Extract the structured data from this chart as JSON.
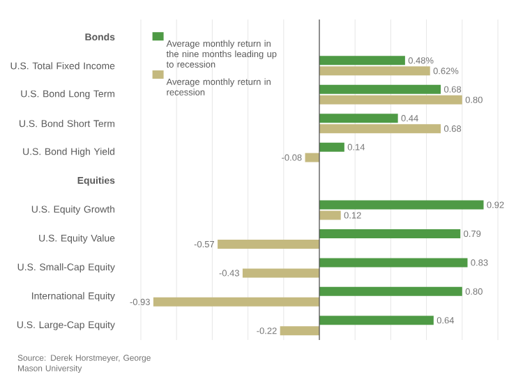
{
  "chart_data": {
    "type": "bar",
    "orientation": "horizontal",
    "categories": [
      "Bonds",
      "U.S. Total Fixed Income",
      "U.S. Bond Long Term",
      "U.S. Bond Short Term",
      "U.S. Bond High Yield",
      "Equities",
      "U.S. Equity Growth",
      "U.S. Equity Value",
      "U.S. Small-Cap Equity",
      "International Equity",
      "U.S. Large-Cap Equity"
    ],
    "series": [
      {
        "name": "Average monthly return in the nine months leading up to recession",
        "color": "#4e9a45",
        "values": [
          null,
          0.48,
          0.68,
          0.44,
          0.14,
          null,
          0.92,
          0.79,
          0.83,
          0.8,
          0.64
        ],
        "value_labels": [
          null,
          "0.48%",
          "0.68",
          "0.44",
          "0.14",
          null,
          "0.92",
          "0.79",
          "0.83",
          "0.80",
          "0.64"
        ]
      },
      {
        "name": "Average monthly return in recession",
        "color": "#c4b97f",
        "values": [
          null,
          0.62,
          0.8,
          0.68,
          -0.08,
          null,
          0.12,
          -0.57,
          -0.43,
          -0.93,
          -0.22
        ],
        "value_labels": [
          null,
          "0.62%",
          "0.80",
          "0.68",
          "-0.08",
          null,
          "0.12",
          "-0.57",
          "-0.43",
          "-0.93",
          "-0.22"
        ]
      }
    ],
    "xlim": [
      -1,
      1
    ],
    "xticks": [
      {
        "value": -1,
        "label": null
      },
      {
        "value": -0.8,
        "label": null
      },
      {
        "value": -0.6,
        "label": null
      },
      {
        "value": -0.4,
        "label": null
      },
      {
        "value": -0.2,
        "label": null
      },
      {
        "value": 0,
        "label": null
      },
      {
        "value": 0.2,
        "label": null
      },
      {
        "value": 0.4,
        "label": null
      },
      {
        "value": 0.6,
        "label": null
      },
      {
        "value": 0.8,
        "label": null
      },
      {
        "value": 1,
        "label": null
      }
    ],
    "grid": "x",
    "legend": "top left",
    "tick_labels": "y",
    "annotations": [
      "Source: Derek Horstmeyer, George Mason University"
    ]
  }
}
